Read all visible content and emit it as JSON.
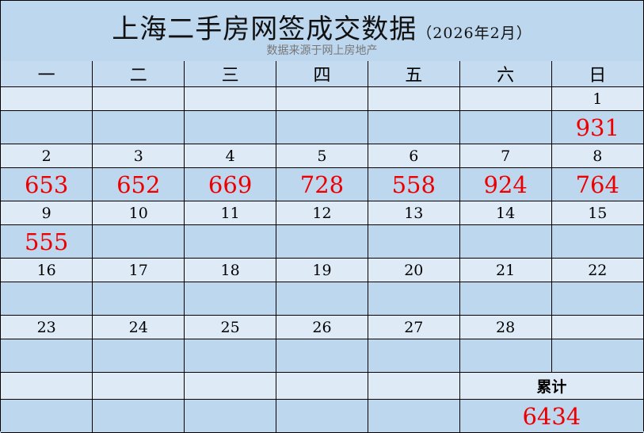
{
  "title": "上海二手房网签成交数据",
  "title_suffix": "（2026年2月）",
  "subtitle": "数据来源于网上房地产",
  "weekdays": [
    "一",
    "二",
    "三",
    "四",
    "五",
    "六",
    "日"
  ],
  "weeks": [
    {
      "dates": [
        "",
        "",
        "",
        "",
        "",
        "",
        "1"
      ],
      "values": [
        "",
        "",
        "",
        "",
        "",
        "",
        "931"
      ]
    },
    {
      "dates": [
        "2",
        "3",
        "4",
        "5",
        "6",
        "7",
        "8"
      ],
      "values": [
        "653",
        "652",
        "669",
        "728",
        "558",
        "924",
        "764"
      ]
    },
    {
      "dates": [
        "9",
        "10",
        "11",
        "12",
        "13",
        "14",
        "15"
      ],
      "values": [
        "555",
        "",
        "",
        "",
        "",
        "",
        ""
      ]
    },
    {
      "dates": [
        "16",
        "17",
        "18",
        "19",
        "20",
        "21",
        "22"
      ],
      "values": [
        "",
        "",
        "",
        "",
        "",
        "",
        ""
      ]
    },
    {
      "dates": [
        "23",
        "24",
        "25",
        "26",
        "27",
        "28",
        ""
      ],
      "values": [
        "",
        "",
        "",
        "",
        "",
        "",
        ""
      ]
    }
  ],
  "total": {
    "label": "累计",
    "value": "6434"
  },
  "colors": {
    "value": "#e00000",
    "light": "#deebf7",
    "dark": "#bdd7ee"
  }
}
